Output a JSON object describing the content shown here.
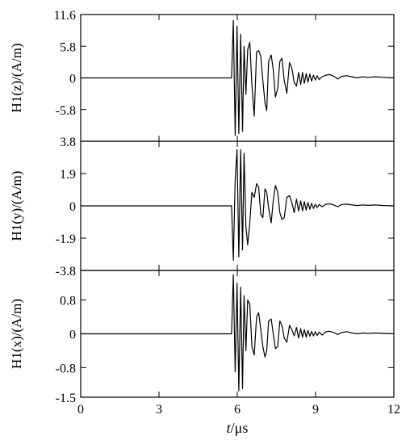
{
  "chart_data": {
    "type": "line",
    "xlabel_italic": "t",
    "xlabel_unit": "/μs",
    "xlim": [
      0,
      12
    ],
    "x_ticks": [
      0,
      3,
      6,
      9,
      12
    ],
    "x_tick_labels": [
      "0",
      "3",
      "6",
      "9",
      "12"
    ],
    "panels": [
      {
        "ylabel": "H1(z)/(A/m)",
        "ylim": [
          -11.6,
          11.6
        ],
        "y_ticks": [
          11.6,
          5.8,
          0,
          -5.8
        ],
        "y_tick_labels": [
          "11.6",
          "5.8",
          "0",
          "-5.8"
        ],
        "series": {
          "x": [
            0,
            5.78,
            5.85,
            5.92,
            5.99,
            6.06,
            6.13,
            6.2,
            6.26,
            6.33,
            6.4,
            6.48,
            6.56,
            6.65,
            6.74,
            6.82,
            6.9,
            6.98,
            7.06,
            7.13,
            7.2,
            7.3,
            7.38,
            7.46,
            7.55,
            7.63,
            7.71,
            7.8,
            7.9,
            8.0,
            8.09,
            8.18,
            8.27,
            8.35,
            8.43,
            8.5,
            8.57,
            8.64,
            8.71,
            8.78,
            8.85,
            8.92,
            8.99,
            9.06,
            9.14,
            9.25,
            9.4,
            9.55,
            9.7,
            9.85,
            10.0,
            10.2,
            10.4,
            10.6,
            10.8,
            11.0,
            11.3,
            11.6,
            12.0
          ],
          "y": [
            0,
            0,
            10.5,
            -10.5,
            9.5,
            -10.2,
            8.0,
            -9.8,
            5.8,
            -3.0,
            5.2,
            6.5,
            -1.2,
            -7.0,
            4.8,
            5.0,
            4.0,
            -0.5,
            -4.5,
            -6.0,
            3.0,
            4.2,
            1.5,
            -3.5,
            -2.0,
            3.0,
            3.6,
            -0.5,
            -2.8,
            2.8,
            1.8,
            -0.8,
            -1.5,
            1.0,
            -1.2,
            1.0,
            -1.0,
            0.8,
            -0.8,
            0.7,
            -0.6,
            0.5,
            -0.4,
            0.4,
            -0.3,
            0.2,
            0.5,
            0.6,
            0.3,
            -0.2,
            0.3,
            0.4,
            0.2,
            0.0,
            0.2,
            0.1,
            0.2,
            0.1,
            0
          ]
        }
      },
      {
        "ylabel": "H1(y)/(A/m)",
        "ylim": [
          -3.8,
          3.8
        ],
        "y_ticks": [
          3.8,
          1.9,
          0,
          -1.9,
          -3.8
        ],
        "y_tick_labels": [
          "3.8",
          "1.9",
          "0",
          "-1.9",
          "-3.8"
        ],
        "series": {
          "x": [
            0,
            5.78,
            5.85,
            5.92,
            5.99,
            6.06,
            6.13,
            6.2,
            6.26,
            6.33,
            6.4,
            6.48,
            6.56,
            6.65,
            6.74,
            6.82,
            6.9,
            6.98,
            7.06,
            7.13,
            7.2,
            7.3,
            7.38,
            7.46,
            7.55,
            7.63,
            7.71,
            7.8,
            7.9,
            8.0,
            8.09,
            8.18,
            8.27,
            8.35,
            8.43,
            8.5,
            8.57,
            8.64,
            8.71,
            8.78,
            8.85,
            8.92,
            8.99,
            9.06,
            9.14,
            9.25,
            9.4,
            9.55,
            9.7,
            9.85,
            10.0,
            10.2,
            10.4,
            10.6,
            10.8,
            11.0,
            11.3,
            11.6,
            12.0
          ],
          "y": [
            0,
            0,
            -3.2,
            1.5,
            3.3,
            -3.0,
            3.3,
            -2.6,
            3.1,
            -1.2,
            -2.3,
            -1.0,
            0.8,
            0.5,
            1.3,
            1.1,
            -0.5,
            -0.7,
            1.0,
            0.8,
            -0.1,
            -1.0,
            0.3,
            1.2,
            0.8,
            -0.4,
            -0.8,
            -0.7,
            0.5,
            0.6,
            0.2,
            -0.4,
            0.4,
            -0.3,
            0.3,
            -0.3,
            0.25,
            -0.25,
            0.2,
            -0.2,
            0.15,
            -0.15,
            0.1,
            -0.1,
            0.08,
            -0.05,
            0.1,
            0.12,
            0.05,
            -0.05,
            0.08,
            0.1,
            0.05,
            0.02,
            0.05,
            0.03,
            0.05,
            0.02,
            0
          ]
        }
      },
      {
        "ylabel": "H1(x)/(A/m)",
        "ylim": [
          -1.5,
          1.5
        ],
        "y_ticks": [
          0.8,
          0,
          -0.8,
          -1.5
        ],
        "y_tick_labels": [
          "0.8",
          "0",
          "-0.8",
          "-1.5"
        ],
        "series": {
          "x": [
            0,
            5.78,
            5.85,
            5.92,
            5.99,
            6.06,
            6.13,
            6.2,
            6.26,
            6.33,
            6.4,
            6.48,
            6.56,
            6.65,
            6.74,
            6.82,
            6.9,
            6.98,
            7.06,
            7.13,
            7.2,
            7.3,
            7.38,
            7.46,
            7.55,
            7.63,
            7.71,
            7.8,
            7.9,
            8.0,
            8.09,
            8.18,
            8.27,
            8.35,
            8.43,
            8.5,
            8.57,
            8.64,
            8.71,
            8.78,
            8.85,
            8.92,
            8.99,
            9.06,
            9.14,
            9.25,
            9.4,
            9.55,
            9.7,
            9.85,
            10.0,
            10.2,
            10.4,
            10.6,
            10.8,
            11.0,
            11.3,
            11.6,
            12.0
          ],
          "y": [
            0,
            0,
            1.4,
            -0.9,
            1.2,
            -1.35,
            1.1,
            -1.3,
            0.9,
            -0.4,
            0.8,
            0.7,
            -0.3,
            -0.5,
            0.4,
            0.5,
            0.1,
            -0.3,
            -0.55,
            -0.4,
            0.3,
            0.35,
            0.0,
            -0.35,
            -0.3,
            0.3,
            0.2,
            -0.1,
            -0.2,
            0.2,
            0.1,
            -0.05,
            0.15,
            -0.1,
            0.12,
            -0.08,
            0.1,
            -0.08,
            0.08,
            -0.06,
            0.06,
            -0.05,
            0.05,
            -0.04,
            0.04,
            -0.03,
            0.05,
            0.06,
            0.03,
            -0.02,
            0.03,
            0.05,
            0.02,
            0.0,
            0.02,
            0.01,
            0.02,
            0.01,
            0
          ]
        }
      }
    ]
  }
}
